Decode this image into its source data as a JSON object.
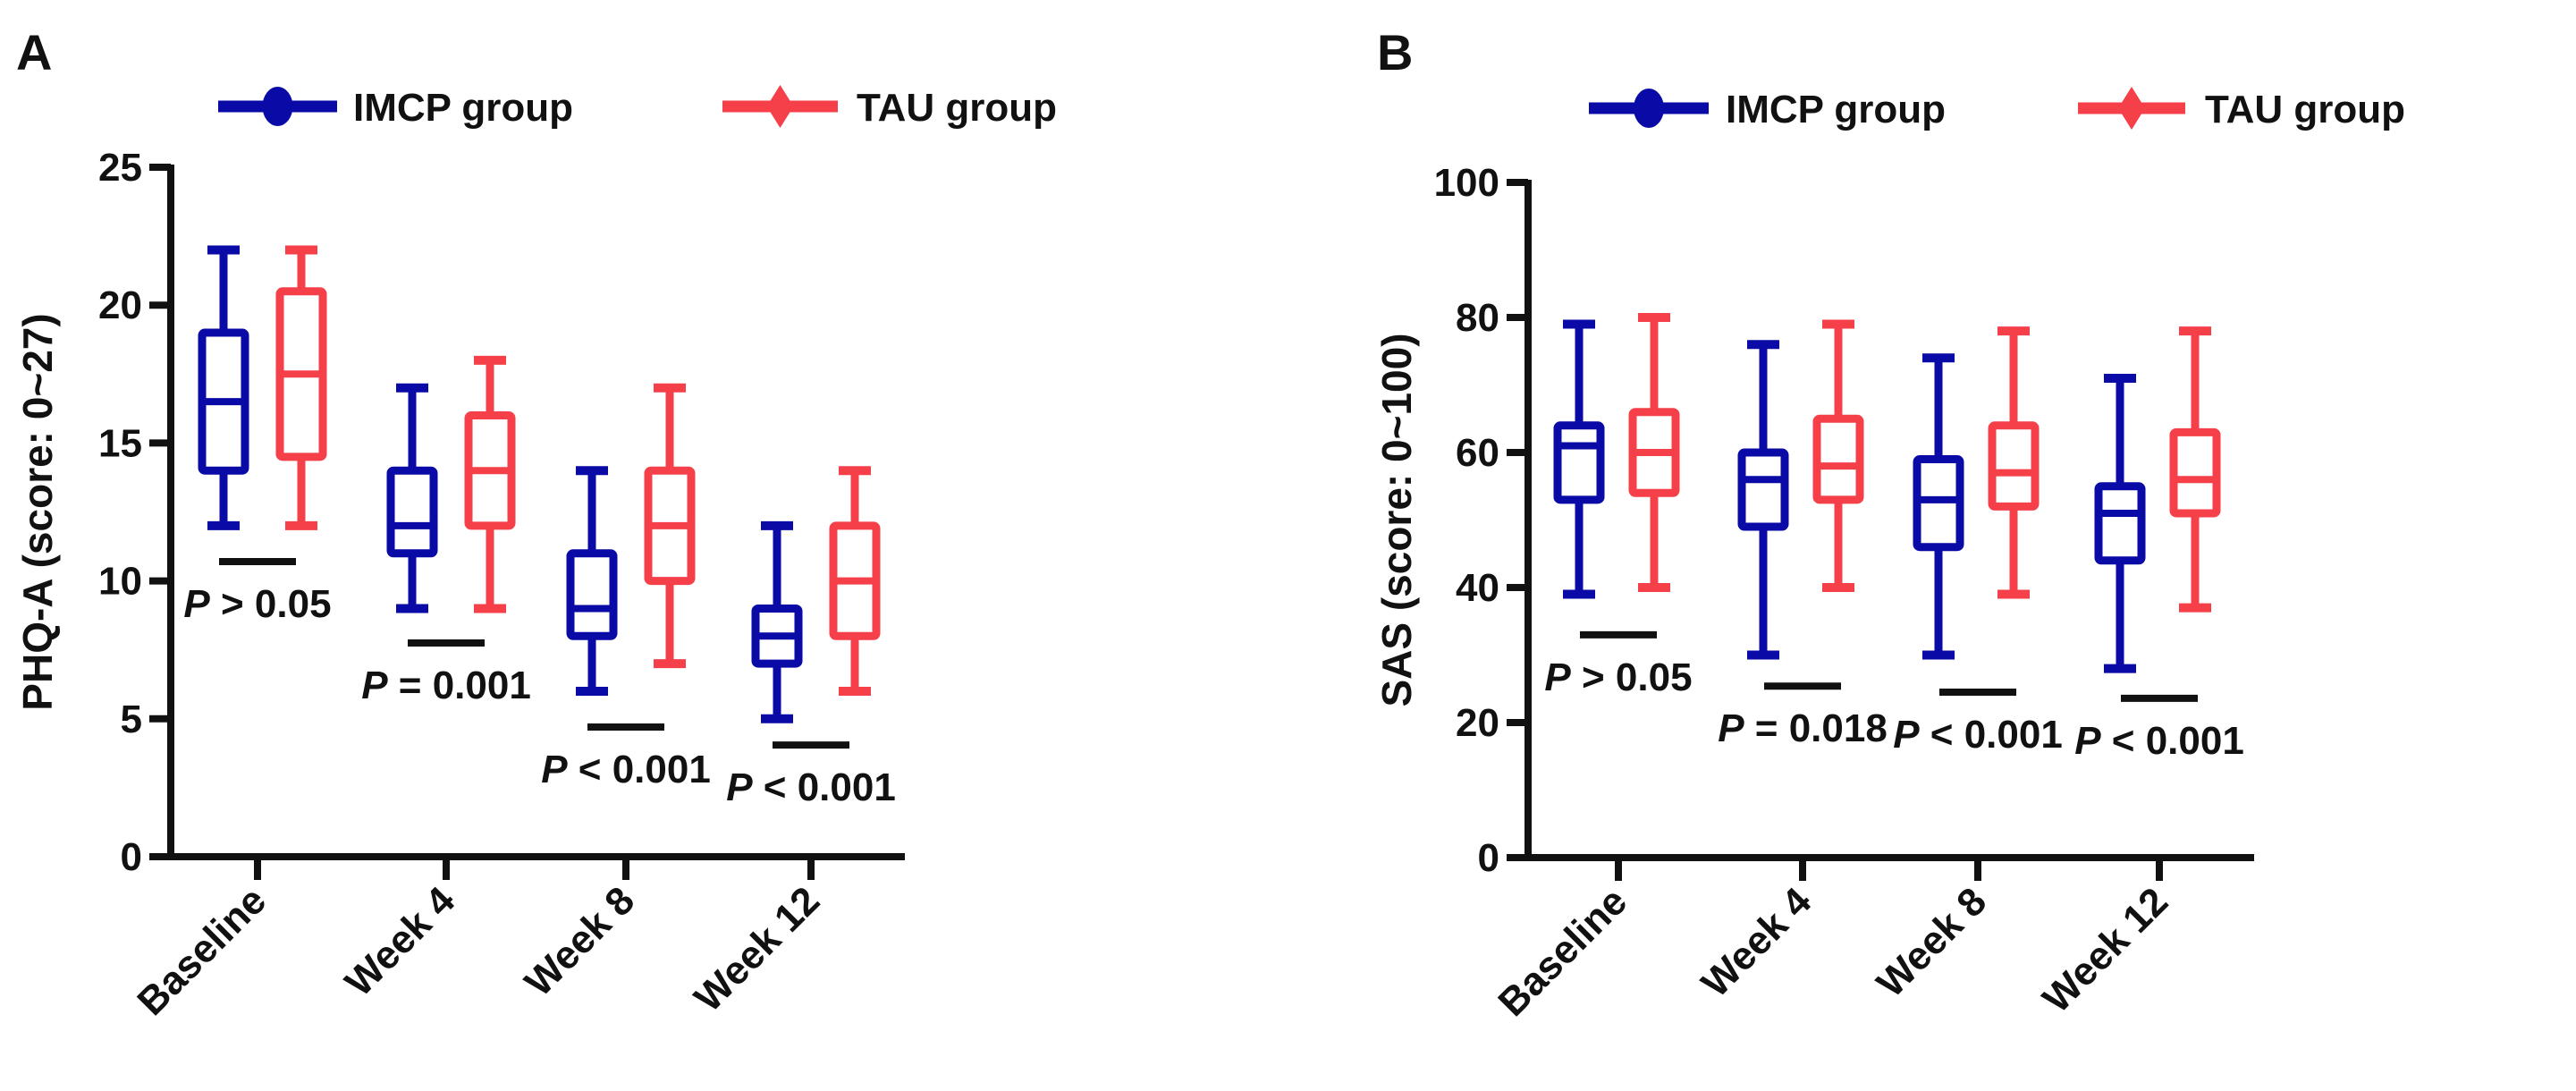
{
  "colors": {
    "imcp": "#0a0aa6",
    "tau": "#f5404a",
    "axis": "#111111"
  },
  "chart_data": [
    {
      "type": "box",
      "panel_label": "A",
      "ylabel": "PHQ-A (score: 0~27)",
      "ylim": [
        0,
        25
      ],
      "yticks": [
        0,
        5,
        10,
        15,
        20,
        25
      ],
      "categories": [
        "Baseline",
        "Week 4",
        "Week 8",
        "Week 12"
      ],
      "legend": [
        "IMCP group",
        "TAU group"
      ],
      "legend_position": "top",
      "series": [
        {
          "name": "IMCP group",
          "boxes": [
            {
              "min": 12,
              "q1": 14,
              "median": 16.5,
              "q3": 19,
              "max": 22
            },
            {
              "min": 9,
              "q1": 11,
              "median": 12,
              "q3": 14,
              "max": 17
            },
            {
              "min": 6,
              "q1": 8,
              "median": 9,
              "q3": 11,
              "max": 14
            },
            {
              "min": 5,
              "q1": 7,
              "median": 8,
              "q3": 9,
              "max": 12
            }
          ]
        },
        {
          "name": "TAU group",
          "boxes": [
            {
              "min": 12,
              "q1": 14.5,
              "median": 17.5,
              "q3": 20.5,
              "max": 22
            },
            {
              "min": 9,
              "q1": 12,
              "median": 14,
              "q3": 16,
              "max": 18
            },
            {
              "min": 7,
              "q1": 10,
              "median": 12,
              "q3": 14,
              "max": 17
            },
            {
              "min": 6,
              "q1": 8,
              "median": 10,
              "q3": 12,
              "max": 14
            }
          ]
        }
      ],
      "annotations": [
        {
          "p": "P",
          "text": " > 0.05",
          "y": 10.7
        },
        {
          "p": "P",
          "text": " = 0.001",
          "y": 7.75
        },
        {
          "p": "P",
          "text": " < 0.001",
          "y": 4.7
        },
        {
          "p": "P",
          "text": " < 0.001",
          "y": 4.05
        }
      ]
    },
    {
      "type": "box",
      "panel_label": "B",
      "ylabel": "SAS (score: 0~100)",
      "ylim": [
        0,
        100
      ],
      "yticks": [
        0,
        20,
        40,
        60,
        80,
        100
      ],
      "categories": [
        "Baseline",
        "Week 4",
        "Week 8",
        "Week 12"
      ],
      "legend": [
        "IMCP group",
        "TAU group"
      ],
      "legend_position": "top",
      "series": [
        {
          "name": "IMCP group",
          "boxes": [
            {
              "min": 39,
              "q1": 53,
              "median": 61,
              "q3": 64,
              "max": 79
            },
            {
              "min": 30,
              "q1": 49,
              "median": 56,
              "q3": 60,
              "max": 76
            },
            {
              "min": 30,
              "q1": 46,
              "median": 53,
              "q3": 59,
              "max": 74
            },
            {
              "min": 28,
              "q1": 44,
              "median": 51,
              "q3": 55,
              "max": 71
            }
          ]
        },
        {
          "name": "TAU group",
          "boxes": [
            {
              "min": 40,
              "q1": 54,
              "median": 60,
              "q3": 66,
              "max": 80
            },
            {
              "min": 40,
              "q1": 53,
              "median": 58,
              "q3": 65,
              "max": 79
            },
            {
              "min": 39,
              "q1": 52,
              "median": 57,
              "q3": 64,
              "max": 78
            },
            {
              "min": 37,
              "q1": 51,
              "median": 56,
              "q3": 63,
              "max": 78
            }
          ]
        }
      ],
      "annotations": [
        {
          "p": "P",
          "text": " > 0.05",
          "y": 33
        },
        {
          "p": "P",
          "text": " = 0.018",
          "y": 25.4
        },
        {
          "p": "P",
          "text": " < 0.001",
          "y": 24.5
        },
        {
          "p": "P",
          "text": " < 0.001",
          "y": 23.6
        }
      ]
    }
  ]
}
